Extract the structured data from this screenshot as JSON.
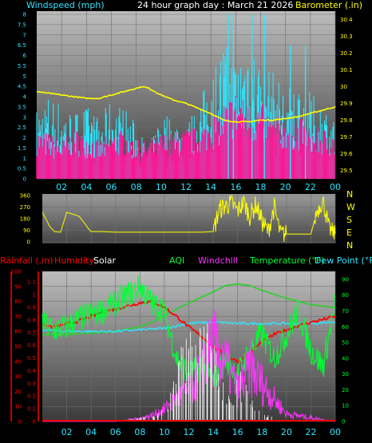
{
  "header": {
    "windspeed": "Windspeed (mph)",
    "title": "24 hour graph day : March 21 2026",
    "barometer": "Barometer (.in)"
  },
  "legend": {
    "rainfall": "Rainfall (.in)",
    "humidity": "Humidity",
    "solar": "Solar",
    "aqi": "AQI",
    "windchill": "Windchill",
    "temperature": "Temperature (°F)",
    "dewpoint": "Dew Point (°F)"
  },
  "colors": {
    "wind": "#2ee6ff",
    "gust": "#ff1493",
    "baro": "#ffff00",
    "dir": "#ffff00",
    "rain": "#ff0000",
    "humidity": "#ff0000",
    "solar": "#ffffff",
    "aqi": "#00ff33",
    "windchill": "#ff33ff",
    "temperature": "#00ff33",
    "dewpoint": "#2ee6ff",
    "temp_line": "#33cc33"
  },
  "chart_data": [
    {
      "type": "line",
      "name": "wind",
      "x_ticks": [
        "02",
        "04",
        "06",
        "08",
        "10",
        "12",
        "14",
        "16",
        "18",
        "20",
        "22",
        "00"
      ],
      "y_left_ticks": [
        "0",
        "0.5",
        "1",
        "1.5",
        "2",
        "2.5",
        "3",
        "3.5",
        "4",
        "4.5",
        "5",
        "5.5",
        "6",
        "6.5",
        "7",
        "7.5",
        "8"
      ],
      "y_right_ticks": [
        "29.5",
        "29.6",
        "29.7",
        "29.8",
        "29.9",
        "30",
        "30.1",
        "30.2",
        "30.3",
        "30.4"
      ],
      "ylim_left": [
        0,
        8
      ],
      "ylim_right": [
        29.45,
        30.45
      ],
      "barometer": {
        "x": [
          0,
          2,
          4,
          5,
          6,
          7,
          7.5,
          8,
          8.5,
          9,
          10,
          11,
          12,
          13,
          14,
          15,
          16,
          17,
          18,
          19,
          20,
          21,
          22,
          23,
          24
        ],
        "y": [
          29.97,
          29.95,
          29.93,
          29.93,
          29.95,
          29.97,
          29.98,
          29.99,
          30.0,
          29.99,
          29.95,
          29.92,
          29.9,
          29.87,
          29.84,
          29.8,
          29.79,
          29.79,
          29.8,
          29.8,
          29.81,
          29.82,
          29.84,
          29.86,
          29.88
        ]
      },
      "wind_avg_envelope": {
        "x": [
          0,
          1,
          2,
          3,
          4,
          5,
          6,
          7,
          8,
          9,
          10,
          11,
          12,
          13,
          14,
          15,
          16,
          17,
          18,
          19,
          20,
          21,
          22,
          23,
          24
        ],
        "y": [
          2.3,
          2.8,
          2.5,
          2.2,
          2.4,
          2.0,
          2.6,
          2.4,
          1.8,
          1.0,
          2.3,
          2.0,
          1.8,
          2.5,
          3.5,
          4.5,
          4.0,
          5.0,
          3.8,
          3.5,
          3.0,
          3.2,
          2.8,
          2.5,
          2.0
        ]
      },
      "gust_envelope": {
        "x": [
          0,
          1,
          2,
          3,
          4,
          5,
          6,
          7,
          8,
          9,
          10,
          11,
          12,
          13,
          14,
          15,
          16,
          17,
          18,
          19,
          20,
          21,
          22,
          23,
          24
        ],
        "y": [
          2.0,
          1.8,
          1.5,
          2.0,
          1.8,
          1.5,
          1.8,
          2.0,
          1.5,
          1.5,
          1.8,
          1.8,
          2.0,
          2.0,
          2.5,
          3.0,
          3.5,
          3.0,
          3.0,
          2.5,
          2.5,
          2.5,
          2.0,
          2.0,
          1.8
        ]
      },
      "wind_spikes": {
        "x": [
          15.4,
          15.8,
          17.3,
          18.3,
          20.4,
          21.6
        ],
        "y": [
          8,
          8,
          8,
          8,
          6.5,
          6.5
        ]
      }
    },
    {
      "type": "line",
      "name": "wind_direction",
      "y_left_ticks": [
        "0",
        "90",
        "180",
        "270",
        "360"
      ],
      "y_right_labels": [
        "N",
        "W",
        "S",
        "E",
        "N"
      ],
      "ylim": [
        0,
        360
      ],
      "x": [
        0,
        0.4,
        0.6,
        1,
        1.5,
        2,
        3,
        3.5,
        3.8,
        4,
        5,
        6,
        7,
        8,
        9,
        10,
        11,
        12,
        13,
        14,
        14.5,
        15,
        15.5,
        16,
        16.5,
        17,
        17.5,
        18,
        18.5,
        19,
        19.5,
        20,
        21,
        22,
        22.5,
        23,
        23.5,
        24
      ],
      "y": [
        230,
        160,
        120,
        80,
        75,
        230,
        200,
        140,
        100,
        80,
        80,
        75,
        75,
        75,
        75,
        75,
        75,
        75,
        75,
        80,
        250,
        280,
        300,
        240,
        310,
        200,
        290,
        160,
        80,
        270,
        60,
        60,
        60,
        60,
        240,
        320,
        100,
        60
      ]
    },
    {
      "type": "line",
      "name": "temperature_humidity",
      "y_left_ticks": [
        "0",
        "0.1",
        "0.2",
        "0.3",
        "0.4",
        "0.5",
        "0.6",
        "0.7",
        "0.8",
        "0.9",
        "1",
        "1.1"
      ],
      "y_left2_ticks": [
        "0",
        "10",
        "20",
        "30",
        "40",
        "50",
        "60",
        "70",
        "80",
        "90",
        "100"
      ],
      "y_right_ticks": [
        "0",
        "10",
        "20",
        "30",
        "40",
        "50",
        "60",
        "70",
        "80",
        "90"
      ],
      "ylim": [
        0,
        100
      ],
      "humidity": {
        "x": [
          0,
          1,
          2,
          3,
          4,
          5,
          6,
          7,
          8,
          9,
          10,
          11,
          12,
          13,
          14,
          15,
          16,
          17,
          18,
          19,
          20,
          21,
          22,
          23,
          24
        ],
        "y": [
          64,
          63,
          65,
          67,
          70,
          73,
          75,
          77,
          79,
          80,
          76,
          70,
          63,
          57,
          50,
          44,
          40,
          46,
          53,
          58,
          61,
          64,
          66,
          68,
          70
        ]
      },
      "temperature": {
        "x": [
          0,
          2,
          4,
          6,
          8,
          9,
          10,
          12,
          14,
          15,
          16,
          17,
          18,
          20,
          22,
          24
        ],
        "y": [
          55,
          55,
          56,
          57,
          60,
          63,
          67,
          75,
          82,
          86,
          87,
          86,
          83,
          78,
          74,
          72
        ]
      },
      "dew_point": {
        "x": [
          0,
          2,
          4,
          6,
          8,
          10,
          12,
          14,
          16,
          18,
          20,
          22,
          24
        ],
        "y": [
          58,
          57,
          57,
          57,
          58,
          59,
          62,
          63,
          62,
          62,
          62,
          62,
          63
        ]
      },
      "aqi": {
        "x": [
          0,
          1,
          2,
          3,
          4,
          5,
          6,
          7,
          8,
          9,
          10,
          11,
          12,
          13,
          14,
          15,
          16,
          17,
          18,
          19,
          20,
          21,
          22,
          23,
          24
        ],
        "y": [
          62,
          58,
          60,
          65,
          68,
          70,
          75,
          80,
          85,
          75,
          70,
          40,
          30,
          35,
          25,
          40,
          30,
          45,
          55,
          40,
          55,
          70,
          45,
          35,
          75
        ]
      },
      "solar": {
        "x": [
          0,
          6,
          7,
          8,
          9,
          10,
          10.5,
          11,
          11.5,
          12,
          13,
          13.5,
          14,
          14.5,
          15,
          15.5,
          16,
          16.5,
          17,
          17.5,
          18,
          19,
          20,
          24
        ],
        "y": [
          0,
          0,
          1,
          2,
          3,
          8,
          14,
          30,
          40,
          45,
          48,
          50,
          45,
          30,
          20,
          10,
          30,
          20,
          15,
          8,
          4,
          2,
          0,
          0
        ]
      },
      "rain": {
        "x": [
          0,
          24
        ],
        "y": [
          0,
          0
        ]
      },
      "windchill": {
        "x": [
          0,
          1,
          2,
          3,
          4,
          5,
          6,
          7,
          8,
          9,
          10,
          11,
          12,
          13,
          14,
          15,
          16,
          17,
          18,
          19,
          20,
          24
        ],
        "y": [
          0,
          0,
          0,
          0,
          0,
          0,
          0,
          1,
          2,
          4,
          8,
          15,
          20,
          35,
          50,
          40,
          20,
          35,
          25,
          15,
          5,
          0
        ]
      }
    }
  ]
}
